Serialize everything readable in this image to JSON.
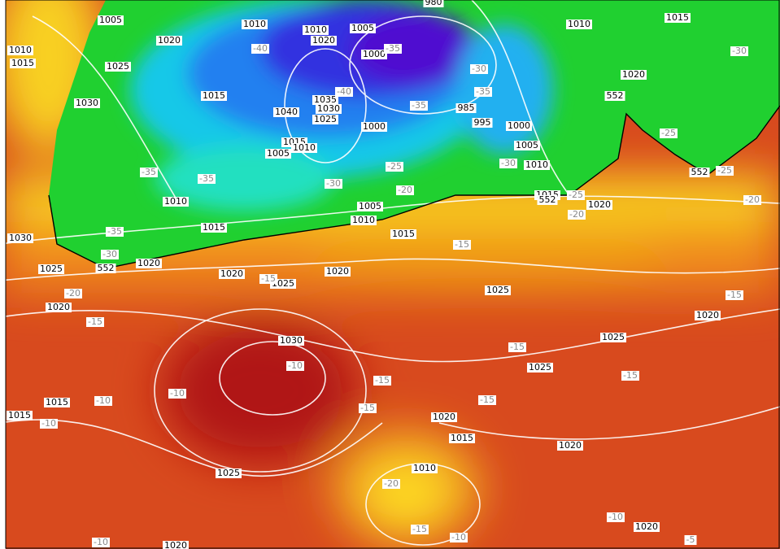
{
  "isobar_labels": [
    "1005",
    "1020",
    "1010",
    "1015",
    "1025",
    "1030",
    "1010",
    "1010",
    "1020",
    "1005",
    "980",
    "1000",
    "1015",
    "1035",
    "1030",
    "1040",
    "1025",
    "1015",
    "1010",
    "1005",
    "1000",
    "985",
    "995",
    "1000",
    "1005",
    "1010",
    "1010",
    "1015",
    "1020",
    "1010",
    "1015",
    "1005",
    "1010",
    "1015",
    "1020",
    "1015",
    "1030",
    "1025",
    "1020",
    "1020",
    "1025",
    "1020",
    "1020",
    "1025",
    "1030",
    "1025",
    "1025",
    "1020",
    "1015",
    "1015",
    "1020",
    "1015",
    "1020",
    "1025",
    "1010",
    "1020",
    "1020"
  ],
  "temperature_labels": [
    "-40",
    "-35",
    "-40",
    "-35",
    "-30",
    "-35",
    "-30",
    "-25",
    "-35",
    "-35",
    "-30",
    "-25",
    "-30",
    "-20",
    "-25",
    "-20",
    "-25",
    "-20",
    "-35",
    "-30",
    "-15",
    "-15",
    "-20",
    "-15",
    "-15",
    "-10",
    "-15",
    "-15",
    "-15",
    "-10",
    "-10",
    "-10",
    "-15",
    "-15",
    "-20",
    "-15",
    "-10",
    "-10",
    "-5",
    "-10"
  ],
  "height_labels": [
    "552",
    "552",
    "552",
    "552"
  ]
}
